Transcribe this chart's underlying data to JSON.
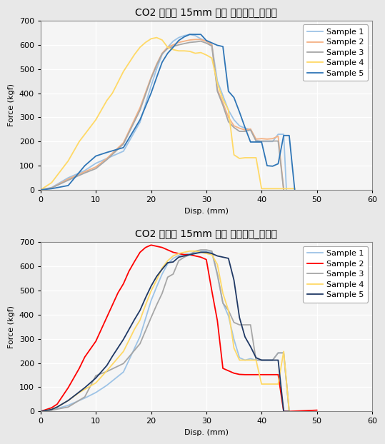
{
  "title1": "CO2 용접부 15mm 비드 강도시험_초기품",
  "title2": "CO2 용접부 15mm 비드 강도시험_시제품",
  "xlabel": "Disp. (mm)",
  "ylabel": "Force (kgf)",
  "xlim": [
    0,
    60
  ],
  "ylim": [
    0,
    700
  ],
  "xticks": [
    0,
    10,
    20,
    30,
    40,
    50,
    60
  ],
  "yticks": [
    0,
    100,
    200,
    300,
    400,
    500,
    600,
    700
  ],
  "legend_labels": [
    "Sample 1",
    "Sample 2",
    "Sample 3",
    "Sample 4",
    "Sample 5"
  ],
  "plot1_colors": [
    "#9DC3E6",
    "#F4B183",
    "#A6A6A6",
    "#FFD966",
    "#2E75B6"
  ],
  "plot2_colors": [
    "#9DC3E6",
    "#FF0000",
    "#A6A6A6",
    "#FFD966",
    "#1F3864"
  ],
  "plot1_linewidth": 1.3,
  "plot2_linewidth": 1.3,
  "plot1_samples": {
    "s1": [
      [
        0,
        0
      ],
      [
        2,
        10
      ],
      [
        5,
        50
      ],
      [
        8,
        80
      ],
      [
        10,
        110
      ],
      [
        12,
        130
      ],
      [
        15,
        160
      ],
      [
        18,
        280
      ],
      [
        20,
        430
      ],
      [
        21,
        500
      ],
      [
        22,
        560
      ],
      [
        23,
        590
      ],
      [
        24,
        615
      ],
      [
        25,
        630
      ],
      [
        26,
        638
      ],
      [
        27,
        643
      ],
      [
        28,
        638
      ],
      [
        29,
        625
      ],
      [
        30,
        615
      ],
      [
        31,
        600
      ],
      [
        32,
        450
      ],
      [
        33,
        390
      ],
      [
        34,
        330
      ],
      [
        35,
        290
      ],
      [
        36,
        265
      ],
      [
        37,
        255
      ],
      [
        38,
        250
      ],
      [
        39,
        205
      ],
      [
        40,
        200
      ],
      [
        41,
        200
      ],
      [
        42,
        200
      ],
      [
        43,
        230
      ],
      [
        44,
        230
      ],
      [
        44.5,
        0
      ]
    ],
    "s2": [
      [
        0,
        0
      ],
      [
        2,
        8
      ],
      [
        5,
        45
      ],
      [
        8,
        75
      ],
      [
        10,
        95
      ],
      [
        12,
        130
      ],
      [
        15,
        195
      ],
      [
        18,
        340
      ],
      [
        20,
        465
      ],
      [
        21,
        520
      ],
      [
        22,
        565
      ],
      [
        23,
        590
      ],
      [
        24,
        600
      ],
      [
        25,
        610
      ],
      [
        26,
        615
      ],
      [
        27,
        620
      ],
      [
        28,
        622
      ],
      [
        29,
        622
      ],
      [
        30,
        615
      ],
      [
        31,
        600
      ],
      [
        32,
        415
      ],
      [
        33,
        360
      ],
      [
        34,
        300
      ],
      [
        35,
        265
      ],
      [
        36,
        255
      ],
      [
        37,
        248
      ],
      [
        38,
        252
      ],
      [
        39,
        210
      ],
      [
        40,
        212
      ],
      [
        41,
        210
      ],
      [
        42,
        212
      ],
      [
        43,
        222
      ],
      [
        44,
        0
      ]
    ],
    "s3": [
      [
        0,
        0
      ],
      [
        2,
        8
      ],
      [
        5,
        40
      ],
      [
        8,
        70
      ],
      [
        10,
        88
      ],
      [
        12,
        125
      ],
      [
        15,
        190
      ],
      [
        18,
        330
      ],
      [
        20,
        460
      ],
      [
        21,
        515
      ],
      [
        22,
        563
      ],
      [
        23,
        585
      ],
      [
        24,
        593
      ],
      [
        25,
        600
      ],
      [
        26,
        605
      ],
      [
        27,
        610
      ],
      [
        28,
        612
      ],
      [
        29,
        615
      ],
      [
        30,
        607
      ],
      [
        31,
        595
      ],
      [
        32,
        408
      ],
      [
        33,
        350
      ],
      [
        34,
        282
      ],
      [
        35,
        258
      ],
      [
        36,
        242
      ],
      [
        37,
        242
      ],
      [
        38,
        248
      ],
      [
        39,
        202
      ],
      [
        40,
        202
      ],
      [
        41,
        202
      ],
      [
        42,
        202
      ],
      [
        43,
        202
      ],
      [
        44,
        0
      ]
    ],
    "s4": [
      [
        0,
        0
      ],
      [
        2,
        30
      ],
      [
        3,
        60
      ],
      [
        5,
        120
      ],
      [
        7,
        200
      ],
      [
        9,
        260
      ],
      [
        10,
        290
      ],
      [
        12,
        370
      ],
      [
        13,
        400
      ],
      [
        15,
        490
      ],
      [
        17,
        560
      ],
      [
        18,
        590
      ],
      [
        19,
        610
      ],
      [
        20,
        625
      ],
      [
        21,
        630
      ],
      [
        22,
        620
      ],
      [
        23,
        590
      ],
      [
        24,
        580
      ],
      [
        25,
        575
      ],
      [
        26,
        575
      ],
      [
        27,
        573
      ],
      [
        28,
        565
      ],
      [
        29,
        568
      ],
      [
        30,
        558
      ],
      [
        31,
        545
      ],
      [
        32,
        440
      ],
      [
        33,
        375
      ],
      [
        34,
        330
      ],
      [
        35,
        145
      ],
      [
        36,
        130
      ],
      [
        37,
        133
      ],
      [
        38,
        133
      ],
      [
        39,
        133
      ],
      [
        40,
        5
      ],
      [
        41,
        5
      ],
      [
        42,
        5
      ],
      [
        43,
        5
      ],
      [
        44,
        5
      ],
      [
        45,
        5
      ],
      [
        46,
        5
      ]
    ],
    "s5": [
      [
        0,
        0
      ],
      [
        2,
        5
      ],
      [
        5,
        18
      ],
      [
        8,
        100
      ],
      [
        10,
        140
      ],
      [
        12,
        155
      ],
      [
        15,
        175
      ],
      [
        18,
        290
      ],
      [
        20,
        400
      ],
      [
        21,
        465
      ],
      [
        22,
        528
      ],
      [
        23,
        565
      ],
      [
        24,
        590
      ],
      [
        25,
        618
      ],
      [
        26,
        633
      ],
      [
        27,
        643
      ],
      [
        28,
        643
      ],
      [
        29,
        643
      ],
      [
        30,
        618
      ],
      [
        31,
        608
      ],
      [
        32,
        598
      ],
      [
        33,
        593
      ],
      [
        34,
        408
      ],
      [
        35,
        382
      ],
      [
        36,
        322
      ],
      [
        37,
        258
      ],
      [
        38,
        198
      ],
      [
        39,
        198
      ],
      [
        40,
        198
      ],
      [
        41,
        100
      ],
      [
        42,
        98
      ],
      [
        43,
        108
      ],
      [
        44,
        225
      ],
      [
        45,
        225
      ],
      [
        46,
        0
      ]
    ]
  },
  "plot2_samples": {
    "s1": [
      [
        0,
        0
      ],
      [
        2,
        5
      ],
      [
        5,
        25
      ],
      [
        8,
        55
      ],
      [
        10,
        78
      ],
      [
        12,
        108
      ],
      [
        15,
        163
      ],
      [
        18,
        310
      ],
      [
        20,
        458
      ],
      [
        21,
        515
      ],
      [
        22,
        568
      ],
      [
        23,
        610
      ],
      [
        24,
        633
      ],
      [
        25,
        645
      ],
      [
        26,
        650
      ],
      [
        27,
        653
      ],
      [
        28,
        658
      ],
      [
        29,
        662
      ],
      [
        30,
        662
      ],
      [
        31,
        658
      ],
      [
        32,
        563
      ],
      [
        33,
        448
      ],
      [
        34,
        395
      ],
      [
        35,
        298
      ],
      [
        36,
        222
      ],
      [
        37,
        212
      ],
      [
        38,
        218
      ],
      [
        39,
        212
      ],
      [
        40,
        212
      ],
      [
        41,
        212
      ],
      [
        42,
        212
      ],
      [
        43,
        242
      ],
      [
        44,
        242
      ],
      [
        45,
        0
      ]
    ],
    "s2": [
      [
        0,
        0
      ],
      [
        2,
        15
      ],
      [
        3,
        30
      ],
      [
        5,
        98
      ],
      [
        7,
        178
      ],
      [
        8,
        225
      ],
      [
        10,
        290
      ],
      [
        12,
        390
      ],
      [
        14,
        490
      ],
      [
        15,
        528
      ],
      [
        16,
        580
      ],
      [
        17,
        620
      ],
      [
        18,
        658
      ],
      [
        19,
        678
      ],
      [
        20,
        688
      ],
      [
        21,
        683
      ],
      [
        22,
        678
      ],
      [
        23,
        668
      ],
      [
        24,
        658
      ],
      [
        25,
        653
      ],
      [
        26,
        648
      ],
      [
        27,
        648
      ],
      [
        28,
        643
      ],
      [
        29,
        638
      ],
      [
        30,
        628
      ],
      [
        31,
        498
      ],
      [
        32,
        375
      ],
      [
        33,
        178
      ],
      [
        34,
        168
      ],
      [
        35,
        158
      ],
      [
        36,
        153
      ],
      [
        37,
        152
      ],
      [
        38,
        152
      ],
      [
        39,
        152
      ],
      [
        40,
        152
      ],
      [
        41,
        152
      ],
      [
        42,
        152
      ],
      [
        43,
        152
      ],
      [
        44,
        0
      ],
      [
        45,
        0
      ],
      [
        50,
        5
      ]
    ],
    "s3": [
      [
        0,
        0
      ],
      [
        2,
        5
      ],
      [
        5,
        18
      ],
      [
        8,
        60
      ],
      [
        10,
        148
      ],
      [
        12,
        165
      ],
      [
        15,
        198
      ],
      [
        18,
        280
      ],
      [
        20,
        388
      ],
      [
        21,
        440
      ],
      [
        22,
        488
      ],
      [
        23,
        555
      ],
      [
        24,
        568
      ],
      [
        25,
        623
      ],
      [
        26,
        638
      ],
      [
        27,
        648
      ],
      [
        28,
        663
      ],
      [
        29,
        668
      ],
      [
        30,
        668
      ],
      [
        31,
        663
      ],
      [
        32,
        568
      ],
      [
        33,
        448
      ],
      [
        34,
        418
      ],
      [
        35,
        368
      ],
      [
        36,
        358
      ],
      [
        37,
        358
      ],
      [
        38,
        358
      ],
      [
        39,
        212
      ],
      [
        40,
        212
      ],
      [
        41,
        212
      ],
      [
        42,
        212
      ],
      [
        43,
        242
      ],
      [
        44,
        242
      ],
      [
        45,
        0
      ]
    ],
    "s4": [
      [
        0,
        0
      ],
      [
        2,
        8
      ],
      [
        3,
        18
      ],
      [
        5,
        45
      ],
      [
        7,
        78
      ],
      [
        10,
        118
      ],
      [
        12,
        168
      ],
      [
        15,
        248
      ],
      [
        17,
        340
      ],
      [
        18,
        378
      ],
      [
        19,
        440
      ],
      [
        20,
        498
      ],
      [
        21,
        543
      ],
      [
        22,
        593
      ],
      [
        23,
        623
      ],
      [
        24,
        643
      ],
      [
        25,
        653
      ],
      [
        26,
        658
      ],
      [
        27,
        663
      ],
      [
        28,
        663
      ],
      [
        29,
        658
      ],
      [
        30,
        653
      ],
      [
        31,
        648
      ],
      [
        32,
        608
      ],
      [
        33,
        488
      ],
      [
        34,
        418
      ],
      [
        35,
        262
      ],
      [
        36,
        212
      ],
      [
        37,
        212
      ],
      [
        38,
        212
      ],
      [
        39,
        212
      ],
      [
        40,
        113
      ],
      [
        41,
        113
      ],
      [
        42,
        113
      ],
      [
        43,
        113
      ],
      [
        44,
        248
      ],
      [
        45,
        0
      ]
    ],
    "s5": [
      [
        0,
        0
      ],
      [
        2,
        8
      ],
      [
        3,
        18
      ],
      [
        5,
        45
      ],
      [
        8,
        98
      ],
      [
        10,
        138
      ],
      [
        12,
        190
      ],
      [
        13,
        228
      ],
      [
        15,
        298
      ],
      [
        17,
        380
      ],
      [
        18,
        418
      ],
      [
        19,
        470
      ],
      [
        20,
        518
      ],
      [
        21,
        558
      ],
      [
        22,
        588
      ],
      [
        23,
        615
      ],
      [
        24,
        618
      ],
      [
        25,
        638
      ],
      [
        26,
        643
      ],
      [
        27,
        648
      ],
      [
        28,
        653
      ],
      [
        29,
        658
      ],
      [
        30,
        658
      ],
      [
        31,
        653
      ],
      [
        32,
        643
      ],
      [
        33,
        638
      ],
      [
        34,
        633
      ],
      [
        35,
        543
      ],
      [
        36,
        388
      ],
      [
        37,
        308
      ],
      [
        38,
        268
      ],
      [
        39,
        222
      ],
      [
        40,
        212
      ],
      [
        41,
        212
      ],
      [
        42,
        212
      ],
      [
        43,
        212
      ],
      [
        44,
        0
      ],
      [
        45,
        0
      ]
    ]
  },
  "fig_bg": "#E8E8E8",
  "plot_bg": "#F5F5F5",
  "grid_color": "#FFFFFF",
  "title_fontsize": 10,
  "label_fontsize": 8,
  "tick_fontsize": 8,
  "legend_fontsize": 8
}
